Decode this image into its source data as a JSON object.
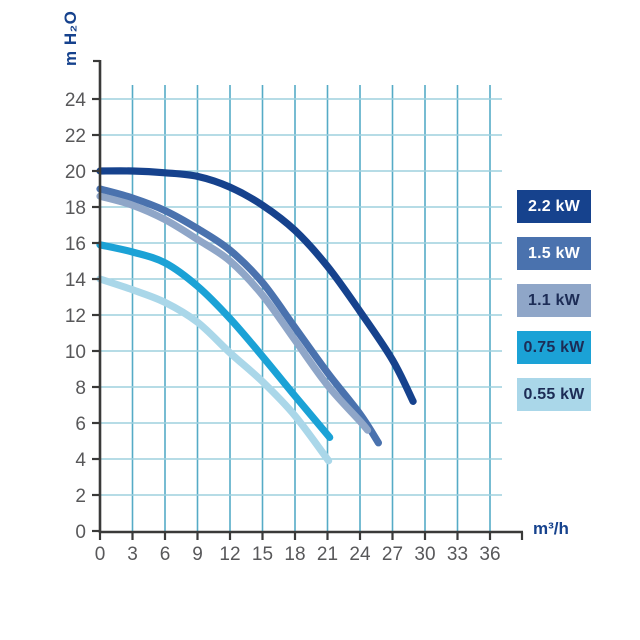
{
  "colors": {
    "background": "#ffffff",
    "axis": "#3a3a39",
    "tick_text": "#58585a",
    "grid_vertical": "#55abc6",
    "grid_horizontal": "#9ed0de",
    "axis_label_text": "#16428d"
  },
  "chart_data": {
    "type": "line",
    "title": "",
    "xlabel": "m³/h",
    "ylabel": "m H₂O",
    "xlim": [
      0,
      36
    ],
    "ylim": [
      0,
      24
    ],
    "x_ticks": [
      0,
      3,
      6,
      9,
      12,
      15,
      18,
      21,
      24,
      27,
      30,
      33,
      36
    ],
    "y_ticks": [
      0,
      2,
      4,
      6,
      8,
      10,
      12,
      14,
      16,
      18,
      20,
      22,
      24
    ],
    "grid": true,
    "legend_position": "right",
    "series": [
      {
        "name": "2.2 kW",
        "color": "#16428d",
        "label_text_color": "#ffffff",
        "points": [
          [
            0,
            20
          ],
          [
            3,
            20
          ],
          [
            6,
            19.9
          ],
          [
            9,
            19.7
          ],
          [
            12,
            19.1
          ],
          [
            15,
            18.1
          ],
          [
            18,
            16.7
          ],
          [
            21,
            14.7
          ],
          [
            24,
            12.2
          ],
          [
            27,
            9.5
          ],
          [
            28.9,
            7.2
          ]
        ]
      },
      {
        "name": "1.5 kW",
        "color": "#4a72ae",
        "label_text_color": "#ffffff",
        "points": [
          [
            0,
            19
          ],
          [
            3,
            18.5
          ],
          [
            6,
            17.8
          ],
          [
            9,
            16.8
          ],
          [
            12,
            15.6
          ],
          [
            15,
            13.8
          ],
          [
            18,
            11.3
          ],
          [
            21,
            8.8
          ],
          [
            24,
            6.5
          ],
          [
            25.7,
            4.9
          ]
        ]
      },
      {
        "name": "1.1 kW",
        "color": "#8fa6c8",
        "label_text_color": "#1c2c56",
        "points": [
          [
            0,
            18.6
          ],
          [
            3,
            18.1
          ],
          [
            6,
            17.3
          ],
          [
            9,
            16.2
          ],
          [
            12,
            15.0
          ],
          [
            15,
            13.1
          ],
          [
            18,
            10.6
          ],
          [
            21,
            8.1
          ],
          [
            24,
            6.1
          ],
          [
            24.7,
            5.6
          ]
        ]
      },
      {
        "name": "0.75 kW",
        "color": "#1ba2d6",
        "label_text_color": "#1c2c56",
        "points": [
          [
            0,
            15.9
          ],
          [
            3,
            15.5
          ],
          [
            6,
            14.9
          ],
          [
            9,
            13.6
          ],
          [
            12,
            11.8
          ],
          [
            15,
            9.7
          ],
          [
            18,
            7.5
          ],
          [
            21.2,
            5.2
          ]
        ]
      },
      {
        "name": "0.55 kW",
        "color": "#aad7e9",
        "label_text_color": "#1c2c56",
        "points": [
          [
            0,
            14
          ],
          [
            3,
            13.4
          ],
          [
            6,
            12.7
          ],
          [
            9,
            11.6
          ],
          [
            12,
            9.9
          ],
          [
            15,
            8.3
          ],
          [
            18,
            6.4
          ],
          [
            21.1,
            3.9
          ]
        ]
      }
    ]
  }
}
